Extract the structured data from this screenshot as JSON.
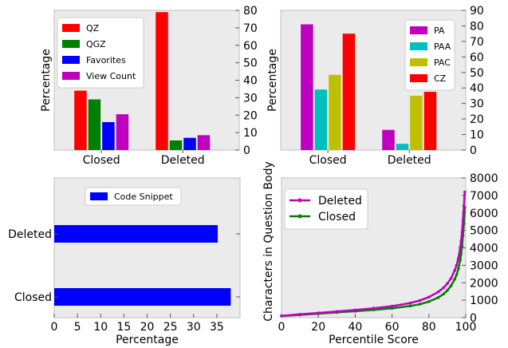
{
  "chart_data": [
    {
      "type": "bar",
      "categories": [
        "Closed",
        "Deleted"
      ],
      "series": [
        {
          "name": "QZ",
          "values": [
            34,
            79
          ],
          "color": "#ff0000"
        },
        {
          "name": "QGZ",
          "values": [
            29,
            5.5
          ],
          "color": "#008000"
        },
        {
          "name": "Favorites",
          "values": [
            16,
            7
          ],
          "color": "#0000ff"
        },
        {
          "name": "View Count",
          "values": [
            20.5,
            8.5
          ],
          "color": "#bf00bf"
        }
      ],
      "xlabel": "",
      "ylabel": "Percentage",
      "ylim": [
        0,
        80
      ],
      "yticks": [
        "0",
        "10",
        "20",
        "30",
        "40",
        "50",
        "60",
        "70",
        "80"
      ],
      "legend_position": "top-left"
    },
    {
      "type": "bar",
      "categories": [
        "Closed",
        "Deleted"
      ],
      "series": [
        {
          "name": "PA",
          "values": [
            81,
            13
          ],
          "color": "#bf00bf"
        },
        {
          "name": "PAA",
          "values": [
            39,
            4
          ],
          "color": "#00bfbf"
        },
        {
          "name": "PAC",
          "values": [
            48.5,
            35
          ],
          "color": "#bfbf00"
        },
        {
          "name": "CZ",
          "values": [
            75,
            37.5
          ],
          "color": "#ff0000"
        }
      ],
      "xlabel": "",
      "ylabel": "Percentage",
      "ylim": [
        0,
        90
      ],
      "yticks": [
        "0",
        "10",
        "20",
        "30",
        "40",
        "50",
        "60",
        "70",
        "80",
        "90"
      ],
      "legend_position": "top-right"
    },
    {
      "type": "bar",
      "orientation": "horizontal",
      "categories": [
        "Closed",
        "Deleted"
      ],
      "series": [
        {
          "name": "Code Snippet",
          "values": [
            38,
            35.2
          ],
          "color": "#0000ff"
        }
      ],
      "xlabel": "Percentage",
      "ylabel": "",
      "xlim": [
        0,
        40
      ],
      "xticks": [
        "0",
        "5",
        "10",
        "15",
        "20",
        "25",
        "30",
        "35"
      ],
      "legend_position": "top-center"
    },
    {
      "type": "line",
      "series": [
        {
          "name": "Deleted",
          "color": "#bf00bf",
          "x": [
            0,
            10,
            20,
            30,
            40,
            50,
            60,
            70,
            75,
            80,
            85,
            88,
            90,
            92,
            94,
            95,
            96,
            97,
            97.5,
            98,
            98.5,
            99,
            99.5
          ],
          "y": [
            100,
            190,
            270,
            350,
            440,
            540,
            660,
            840,
            980,
            1180,
            1470,
            1720,
            1950,
            2250,
            2700,
            3000,
            3400,
            4000,
            4400,
            4900,
            5600,
            6400,
            7200
          ]
        },
        {
          "name": "Closed",
          "color": "#008000",
          "x": [
            0,
            10,
            20,
            30,
            40,
            50,
            60,
            70,
            75,
            80,
            85,
            88,
            90,
            92,
            94,
            95,
            96,
            97,
            97.5,
            98,
            98.5,
            99,
            99.5
          ],
          "y": [
            90,
            160,
            230,
            300,
            370,
            450,
            540,
            670,
            770,
            920,
            1150,
            1360,
            1560,
            1820,
            2200,
            2450,
            2800,
            3300,
            3650,
            4100,
            4700,
            5400,
            6300
          ]
        }
      ],
      "xlabel": "Percentile Score",
      "ylabel": "Characters in Question Body",
      "xlim": [
        0,
        100
      ],
      "ylim": [
        0,
        8000
      ],
      "xticks": [
        "0",
        "20",
        "40",
        "60",
        "80",
        "100"
      ],
      "yticks": [
        "0",
        "1000",
        "2000",
        "3000",
        "4000",
        "5000",
        "6000",
        "7000",
        "8000"
      ],
      "legend_position": "top-left"
    }
  ]
}
